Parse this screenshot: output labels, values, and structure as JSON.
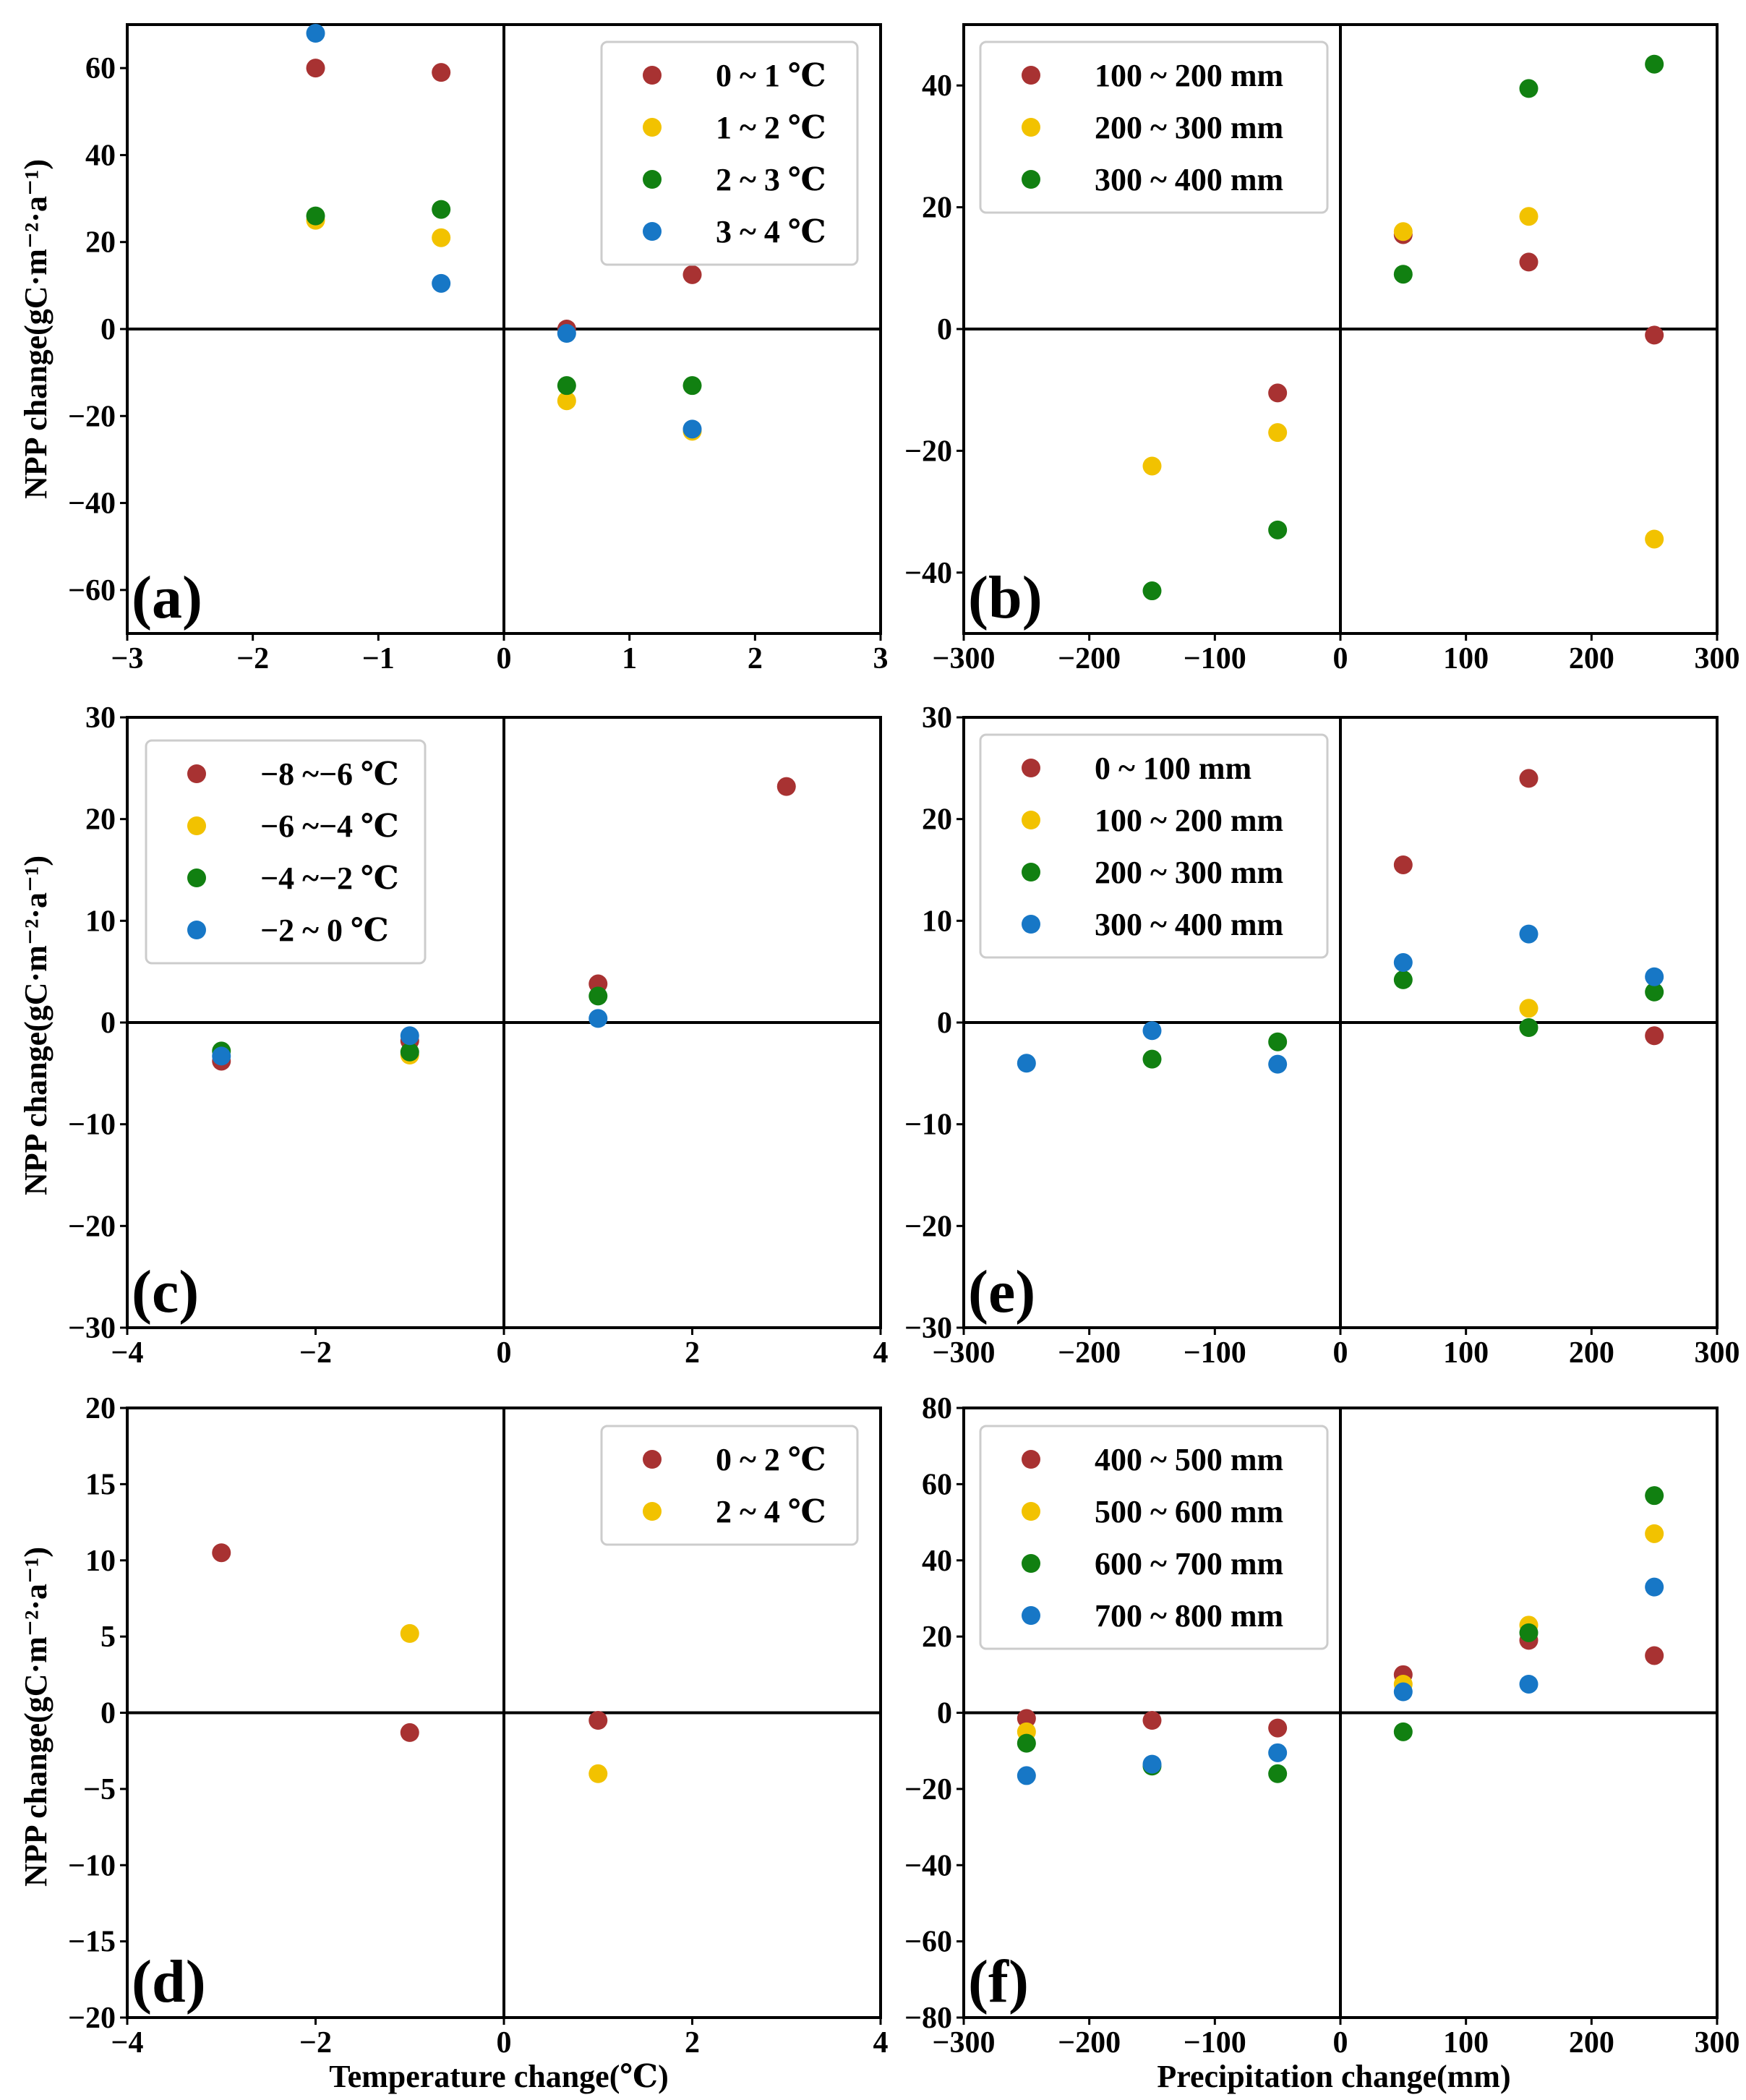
{
  "colors": {
    "dark_red": "#a83232",
    "yellow": "#f2c200",
    "green": "#118011",
    "blue": "#1777c6",
    "axis": "#000000"
  },
  "shared_labels": {
    "ylabel": "NPP change(gC·m⁻²·a⁻¹)",
    "xlabel_temperature": "Temperature change(℃)",
    "xlabel_precipitation": "Precipitation change(mm)"
  },
  "chart_data": [
    {
      "id": "a",
      "type": "scatter",
      "panel_label": "(a)",
      "xlim": [
        -3,
        3
      ],
      "ylim": [
        -70,
        70
      ],
      "xticks": [
        -3,
        -2,
        -1,
        0,
        1,
        2,
        3
      ],
      "yticks": [
        -60,
        -40,
        -20,
        0,
        20,
        40,
        60
      ],
      "xlabel": "",
      "ylabel": "NPP change(gC·m⁻²·a⁻¹)",
      "legend_position": "top-right",
      "series": [
        {
          "name": "0 ~ 1 ℃",
          "color": "#a83232",
          "points": [
            [
              -1.5,
              60
            ],
            [
              -0.5,
              59
            ],
            [
              0.5,
              0
            ],
            [
              1.5,
              12.5
            ]
          ]
        },
        {
          "name": "1 ~ 2 ℃",
          "color": "#f2c200",
          "points": [
            [
              -1.5,
              25
            ],
            [
              -0.5,
              21
            ],
            [
              0.5,
              -16.5
            ],
            [
              1.5,
              -23.5
            ]
          ]
        },
        {
          "name": "2 ~ 3 ℃",
          "color": "#118011",
          "points": [
            [
              -1.5,
              26
            ],
            [
              -0.5,
              27.5
            ],
            [
              0.5,
              -13
            ],
            [
              1.5,
              -13
            ]
          ]
        },
        {
          "name": "3 ~ 4 ℃",
          "color": "#1777c6",
          "points": [
            [
              -1.5,
              68
            ],
            [
              -0.5,
              10.5
            ],
            [
              0.5,
              -1
            ],
            [
              1.5,
              -23
            ]
          ]
        }
      ]
    },
    {
      "id": "b",
      "type": "scatter",
      "panel_label": "(b)",
      "xlim": [
        -300,
        300
      ],
      "ylim": [
        -50,
        50
      ],
      "xticks": [
        -300,
        -200,
        -100,
        0,
        100,
        200,
        300
      ],
      "yticks": [
        -40,
        -20,
        0,
        20,
        40
      ],
      "xlabel": "",
      "ylabel": "",
      "legend_position": "top-left",
      "series": [
        {
          "name": "100 ~ 200 mm",
          "color": "#a83232",
          "points": [
            [
              -50,
              -10.5
            ],
            [
              50,
              15.5
            ],
            [
              150,
              11
            ],
            [
              250,
              -1
            ]
          ]
        },
        {
          "name": "200 ~ 300 mm",
          "color": "#f2c200",
          "points": [
            [
              -150,
              -22.5
            ],
            [
              -50,
              -17
            ],
            [
              50,
              16
            ],
            [
              150,
              18.5
            ],
            [
              250,
              -34.5
            ]
          ]
        },
        {
          "name": "300 ~ 400 mm",
          "color": "#118011",
          "points": [
            [
              -150,
              -43
            ],
            [
              -50,
              -33
            ],
            [
              50,
              9
            ],
            [
              150,
              39.5
            ],
            [
              250,
              43.5
            ]
          ]
        }
      ]
    },
    {
      "id": "c",
      "type": "scatter",
      "panel_label": "(c)",
      "xlim": [
        -4,
        4
      ],
      "ylim": [
        -30,
        30
      ],
      "xticks": [
        -4,
        -2,
        0,
        2,
        4
      ],
      "yticks": [
        -30,
        -20,
        -10,
        0,
        10,
        20,
        30
      ],
      "xlabel": "",
      "ylabel": "NPP change(gC·m⁻²·a⁻¹)",
      "legend_position": "top-left",
      "series": [
        {
          "name": "−8 ~−6 ℃",
          "color": "#a83232",
          "points": [
            [
              -3,
              -3.8
            ],
            [
              -1,
              -1.8
            ],
            [
              1,
              3.8
            ],
            [
              3,
              23.2
            ]
          ]
        },
        {
          "name": "−6 ~−4 ℃",
          "color": "#f2c200",
          "points": [
            [
              -1,
              -3.2
            ]
          ]
        },
        {
          "name": "−4 ~−2 ℃",
          "color": "#118011",
          "points": [
            [
              -3,
              -2.8
            ],
            [
              -1,
              -2.9
            ],
            [
              1,
              2.6
            ]
          ]
        },
        {
          "name": "−2 ~ 0 ℃",
          "color": "#1777c6",
          "points": [
            [
              -3,
              -3.3
            ],
            [
              -1,
              -1.3
            ],
            [
              1,
              0.4
            ]
          ]
        }
      ]
    },
    {
      "id": "e",
      "type": "scatter",
      "panel_label": "(e)",
      "xlim": [
        -300,
        300
      ],
      "ylim": [
        -30,
        30
      ],
      "xticks": [
        -300,
        -200,
        -100,
        0,
        100,
        200,
        300
      ],
      "yticks": [
        -30,
        -20,
        -10,
        0,
        10,
        20,
        30
      ],
      "xlabel": "",
      "ylabel": "",
      "legend_position": "top-left",
      "series": [
        {
          "name": "0 ~ 100 mm",
          "color": "#a83232",
          "points": [
            [
              50,
              15.5
            ],
            [
              150,
              24
            ],
            [
              250,
              -1.3
            ]
          ]
        },
        {
          "name": "100 ~ 200 mm",
          "color": "#f2c200",
          "points": [
            [
              150,
              1.4
            ]
          ]
        },
        {
          "name": "200 ~ 300 mm",
          "color": "#118011",
          "points": [
            [
              -150,
              -3.6
            ],
            [
              -50,
              -1.9
            ],
            [
              50,
              4.2
            ],
            [
              150,
              -0.5
            ],
            [
              250,
              3
            ]
          ]
        },
        {
          "name": "300 ~ 400 mm",
          "color": "#1777c6",
          "points": [
            [
              -250,
              -4
            ],
            [
              -150,
              -0.8
            ],
            [
              -50,
              -4.1
            ],
            [
              50,
              5.9
            ],
            [
              150,
              8.7
            ],
            [
              250,
              4.5
            ]
          ]
        }
      ]
    },
    {
      "id": "d",
      "type": "scatter",
      "panel_label": "(d)",
      "xlim": [
        -4,
        4
      ],
      "ylim": [
        -20,
        20
      ],
      "xticks": [
        -4,
        -2,
        0,
        2,
        4
      ],
      "yticks": [
        -20,
        -15,
        -10,
        -5,
        0,
        5,
        10,
        15,
        20
      ],
      "xlabel": "Temperature change(℃)",
      "ylabel": "NPP change(gC·m⁻²·a⁻¹)",
      "legend_position": "top-right",
      "series": [
        {
          "name": "0 ~ 2 ℃",
          "color": "#a83232",
          "points": [
            [
              -3,
              10.5
            ],
            [
              -1,
              -1.3
            ],
            [
              1,
              -0.5
            ]
          ]
        },
        {
          "name": "2 ~ 4 ℃",
          "color": "#f2c200",
          "points": [
            [
              -1,
              5.2
            ],
            [
              1,
              -4
            ]
          ]
        }
      ]
    },
    {
      "id": "f",
      "type": "scatter",
      "panel_label": "(f)",
      "xlim": [
        -300,
        300
      ],
      "ylim": [
        -80,
        80
      ],
      "xticks": [
        -300,
        -200,
        -100,
        0,
        100,
        200,
        300
      ],
      "yticks": [
        -80,
        -60,
        -40,
        -20,
        0,
        20,
        40,
        60,
        80
      ],
      "xlabel": "Precipitation change(mm)",
      "ylabel": "",
      "legend_position": "top-left",
      "series": [
        {
          "name": "400 ~ 500 mm",
          "color": "#a83232",
          "points": [
            [
              -250,
              -1.5
            ],
            [
              -150,
              -2
            ],
            [
              -50,
              -4
            ],
            [
              50,
              10
            ],
            [
              150,
              19
            ],
            [
              250,
              15
            ]
          ]
        },
        {
          "name": "500 ~ 600 mm",
          "color": "#f2c200",
          "points": [
            [
              -250,
              -5
            ],
            [
              50,
              7.5
            ],
            [
              150,
              23
            ],
            [
              250,
              47
            ]
          ]
        },
        {
          "name": "600 ~ 700 mm",
          "color": "#118011",
          "points": [
            [
              -250,
              -8
            ],
            [
              -150,
              -14
            ],
            [
              -50,
              -16
            ],
            [
              50,
              -5
            ],
            [
              150,
              21
            ],
            [
              250,
              57
            ]
          ]
        },
        {
          "name": "700 ~ 800 mm",
          "color": "#1777c6",
          "points": [
            [
              -250,
              -16.5
            ],
            [
              -150,
              -13.5
            ],
            [
              -50,
              -10.5
            ],
            [
              50,
              5.5
            ],
            [
              150,
              7.5
            ],
            [
              250,
              33
            ]
          ]
        }
      ]
    }
  ]
}
